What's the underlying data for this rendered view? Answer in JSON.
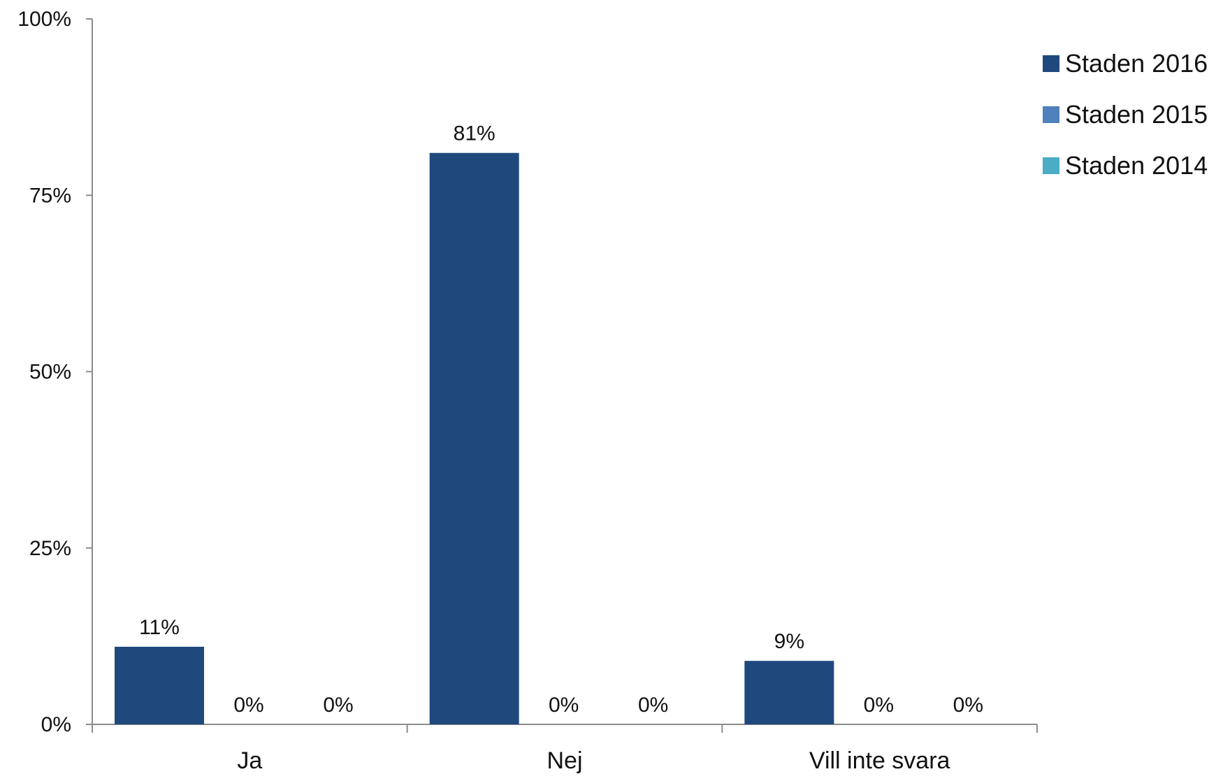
{
  "chart_data": {
    "type": "bar",
    "title": "",
    "xlabel": "",
    "ylabel": "",
    "ylim": [
      0,
      100
    ],
    "y_ticks": [
      0,
      25,
      50,
      75,
      100
    ],
    "y_tick_labels": [
      "0%",
      "25%",
      "50%",
      "75%",
      "100%"
    ],
    "categories": [
      "Ja",
      "Nej",
      "Vill inte svara"
    ],
    "legend_position": "top-right",
    "series": [
      {
        "name": "Staden 2016",
        "color": "#1F497D",
        "values": [
          11,
          81,
          9
        ],
        "labels": [
          "11%",
          "81%",
          "9%"
        ]
      },
      {
        "name": "Staden 2015",
        "color": "#4F81BD",
        "values": [
          0,
          0,
          0
        ],
        "labels": [
          "0%",
          "0%",
          "0%"
        ]
      },
      {
        "name": "Staden 2014",
        "color": "#4BACC6",
        "values": [
          0,
          0,
          0
        ],
        "labels": [
          "0%",
          "0%",
          "0%"
        ]
      }
    ]
  }
}
